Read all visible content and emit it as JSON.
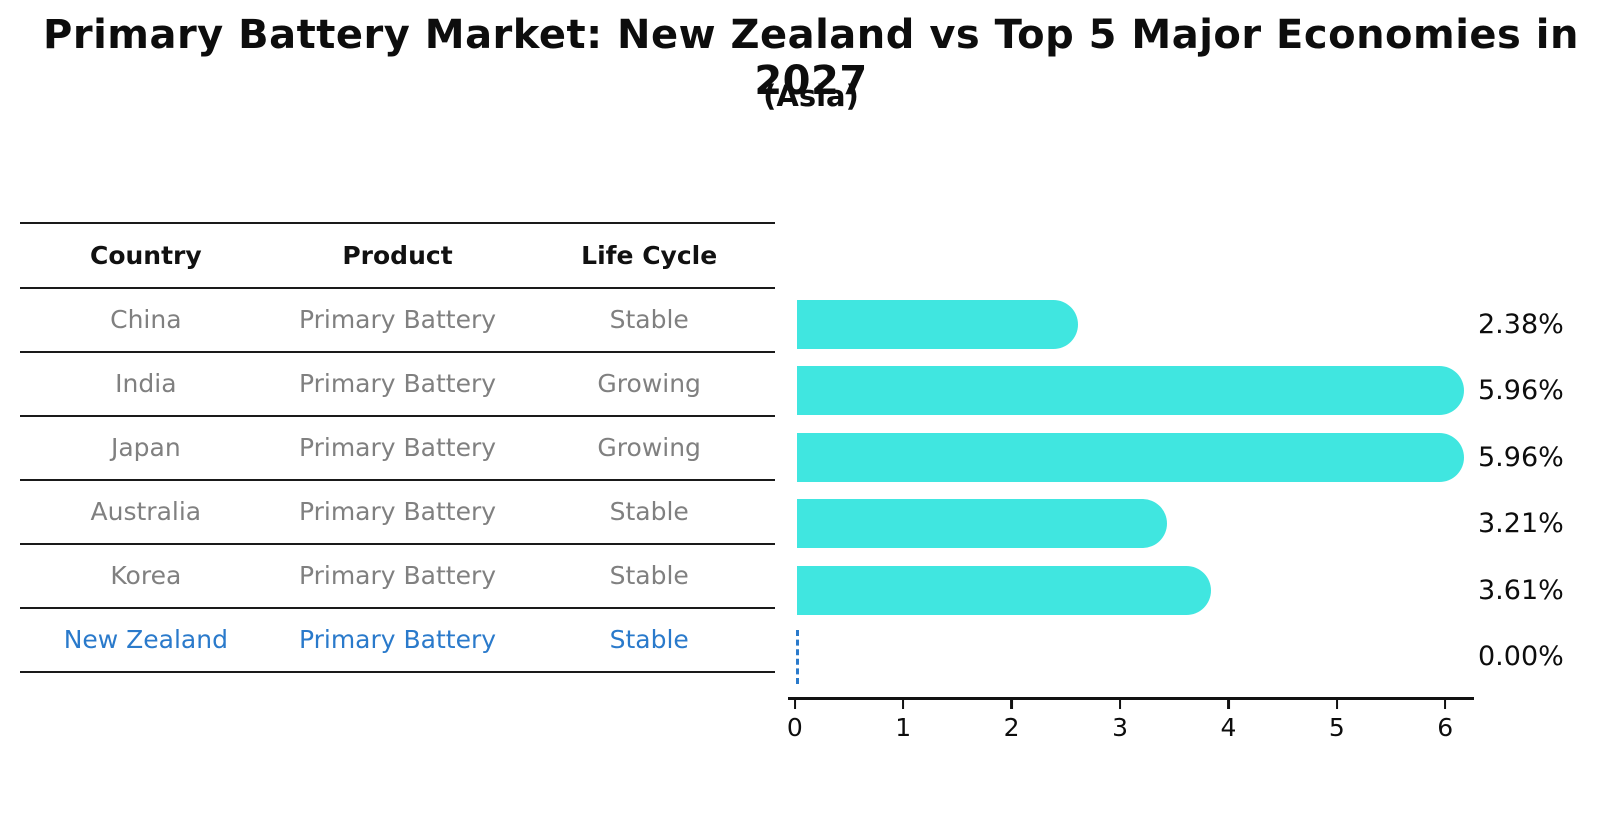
{
  "chart": {
    "title": "Primary Battery Market: New Zealand vs Top 5 Major Economies in 2027",
    "subtitle": "(Asia)"
  },
  "table": {
    "headers": [
      "Country",
      "Product",
      "Life Cycle"
    ],
    "rows": [
      {
        "country": "China",
        "product": "Primary Battery",
        "life_cycle": "Stable"
      },
      {
        "country": "India",
        "product": "Primary Battery",
        "life_cycle": "Growing"
      },
      {
        "country": "Japan",
        "product": "Primary Battery",
        "life_cycle": "Growing"
      },
      {
        "country": "Australia",
        "product": "Primary Battery",
        "life_cycle": "Stable"
      },
      {
        "country": "Korea",
        "product": "Primary Battery",
        "life_cycle": "Stable"
      },
      {
        "country": "New Zealand",
        "product": "Primary Battery",
        "life_cycle": "Stable"
      }
    ],
    "highlight_row_index": 5
  },
  "chart_data": {
    "type": "bar",
    "orientation": "horizontal",
    "title": "Primary Battery Market: New Zealand vs Top 5 Major Economies in 2027",
    "subtitle": "(Asia)",
    "categories": [
      "China",
      "India",
      "Japan",
      "Australia",
      "Korea",
      "New Zealand"
    ],
    "values": [
      2.38,
      5.96,
      5.96,
      3.21,
      3.61,
      0.0
    ],
    "value_labels": [
      "2.38%",
      "5.96%",
      "5.96%",
      "3.21%",
      "3.61%",
      "0.00%"
    ],
    "x_ticks": [
      "0",
      "1",
      "2",
      "3",
      "4",
      "5",
      "6"
    ],
    "xlim": [
      0,
      6.25
    ],
    "xlabel": "",
    "ylabel": "",
    "grid": false,
    "legend": false,
    "bar_color": "#40e6e0",
    "highlight_color": "#2a7acb",
    "zero_marker_style": "dashed-line"
  }
}
